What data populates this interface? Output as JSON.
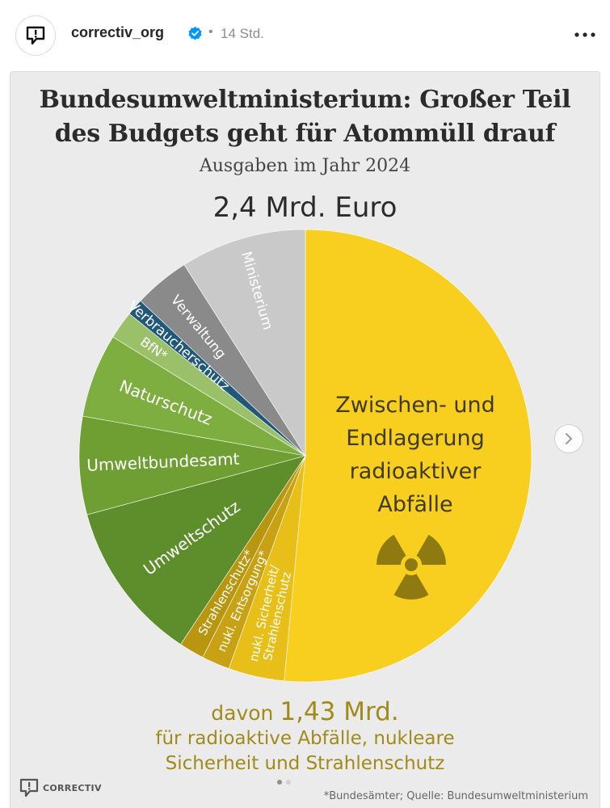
{
  "post": {
    "username": "correctiv_org",
    "separator": "•",
    "time": "14 Std.",
    "more_label": "•••"
  },
  "infographic": {
    "title_line1": "Bundesumweltministerium: Großer Teil",
    "title_line2": "des Budgets geht für Atommüll drauf",
    "subtitle": "Ausgaben im Jahr 2024",
    "total": "2,4 Mrd. Euro",
    "davon_prefix": "davon",
    "davon_amount": "1,43 Mrd.",
    "davon_line2": "für radioaktive Abfälle, nukleare",
    "davon_line3": "Sicherheit und Strahlenschutz",
    "footnote": "*Bundesämter; Quelle: Bundesumweltministerium",
    "brand": "CORRECTIV",
    "big_label": {
      "line1": "Zwischen- und",
      "line2": "Endlagerung",
      "line3": "radioaktiver",
      "line4": "Abfälle"
    }
  },
  "chart_data": {
    "type": "pie",
    "title": "Bundesumweltministerium: Großer Teil des Budgets geht für Atommüll drauf",
    "subtitle": "Ausgaben im Jahr 2024",
    "total_label": "2,4 Mrd. Euro",
    "unit": "share of total",
    "slices": [
      {
        "label": "Zwischen- und Endlagerung radioaktiver Abfälle",
        "value": 0.515,
        "color": "#f8cf1e"
      },
      {
        "label": "nukl. Sicherheit/ Strahlenschutz",
        "value": 0.04,
        "color": "#e8bf18"
      },
      {
        "label": "nukl. Entsorgung*",
        "value": 0.02,
        "color": "#c8a214"
      },
      {
        "label": "Strahlenschutz*",
        "value": 0.018,
        "color": "#b8960f"
      },
      {
        "label": "Umweltschutz",
        "value": 0.115,
        "color": "#5e8e2c"
      },
      {
        "label": "Umweltbundesamt",
        "value": 0.07,
        "color": "#6f9f33"
      },
      {
        "label": "Naturschutz",
        "value": 0.06,
        "color": "#7fae40"
      },
      {
        "label": "BfN*",
        "value": 0.02,
        "color": "#9bc06a"
      },
      {
        "label": "Verbraucherschutz",
        "value": 0.012,
        "color": "#1f5878"
      },
      {
        "label": "Verwaltung",
        "value": 0.04,
        "color": "#8a8a8a"
      },
      {
        "label": "Ministerium",
        "value": 0.09,
        "color": "#c9c9c9"
      }
    ]
  }
}
